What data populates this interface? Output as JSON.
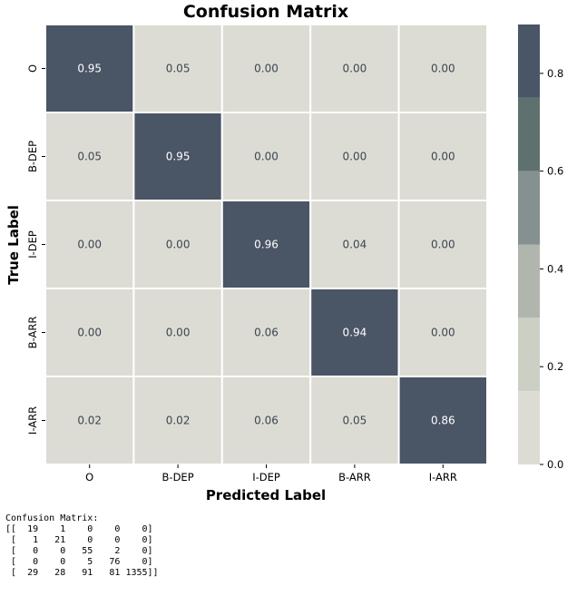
{
  "chart_data": {
    "type": "heatmap",
    "title": "Confusion Matrix",
    "xlabel": "Predicted Label",
    "ylabel": "True Label",
    "x_categories": [
      "O",
      "B-DEP",
      "I-DEP",
      "B-ARR",
      "I-ARR"
    ],
    "y_categories": [
      "O",
      "B-DEP",
      "I-DEP",
      "B-ARR",
      "I-ARR"
    ],
    "values": [
      [
        0.95,
        0.05,
        0.0,
        0.0,
        0.0
      ],
      [
        0.05,
        0.95,
        0.0,
        0.0,
        0.0
      ],
      [
        0.0,
        0.0,
        0.96,
        0.04,
        0.0
      ],
      [
        0.0,
        0.0,
        0.06,
        0.94,
        0.0
      ],
      [
        0.02,
        0.02,
        0.06,
        0.05,
        0.86
      ]
    ],
    "value_labels": [
      [
        "0.95",
        "0.05",
        "0.00",
        "0.00",
        "0.00"
      ],
      [
        "0.05",
        "0.95",
        "0.00",
        "0.00",
        "0.00"
      ],
      [
        "0.00",
        "0.00",
        "0.96",
        "0.04",
        "0.00"
      ],
      [
        "0.00",
        "0.00",
        "0.06",
        "0.94",
        "0.00"
      ],
      [
        "0.02",
        "0.02",
        "0.06",
        "0.05",
        "0.86"
      ]
    ],
    "colorbar": {
      "range": [
        0,
        0.9
      ],
      "ticks": [
        0.0,
        0.2,
        0.4,
        0.6,
        0.8
      ],
      "tick_labels": [
        "0.0",
        "0.2",
        "0.4",
        "0.6",
        "0.8"
      ],
      "bands": [
        {
          "from": 0.0,
          "to": 0.15,
          "color": "#dcdcd4"
        },
        {
          "from": 0.15,
          "to": 0.3,
          "color": "#ccd0c4"
        },
        {
          "from": 0.3,
          "to": 0.45,
          "color": "#b0b6ae"
        },
        {
          "from": 0.45,
          "to": 0.6,
          "color": "#849190"
        },
        {
          "from": 0.6,
          "to": 0.75,
          "color": "#5e716e"
        },
        {
          "from": 0.75,
          "to": 0.9,
          "color": "#4a5566"
        }
      ]
    },
    "text_color_dark": "#3c4650",
    "text_color_light": "#ffffff"
  },
  "console": {
    "heading": "Confusion Matrix:",
    "lines": [
      "[[  19    1    0    0    0]",
      " [   1   21    0    0    0]",
      " [   0    0   55    2    0]",
      " [   0    0    5   76    0]",
      " [  29   28   91   81 1355]]"
    ]
  }
}
